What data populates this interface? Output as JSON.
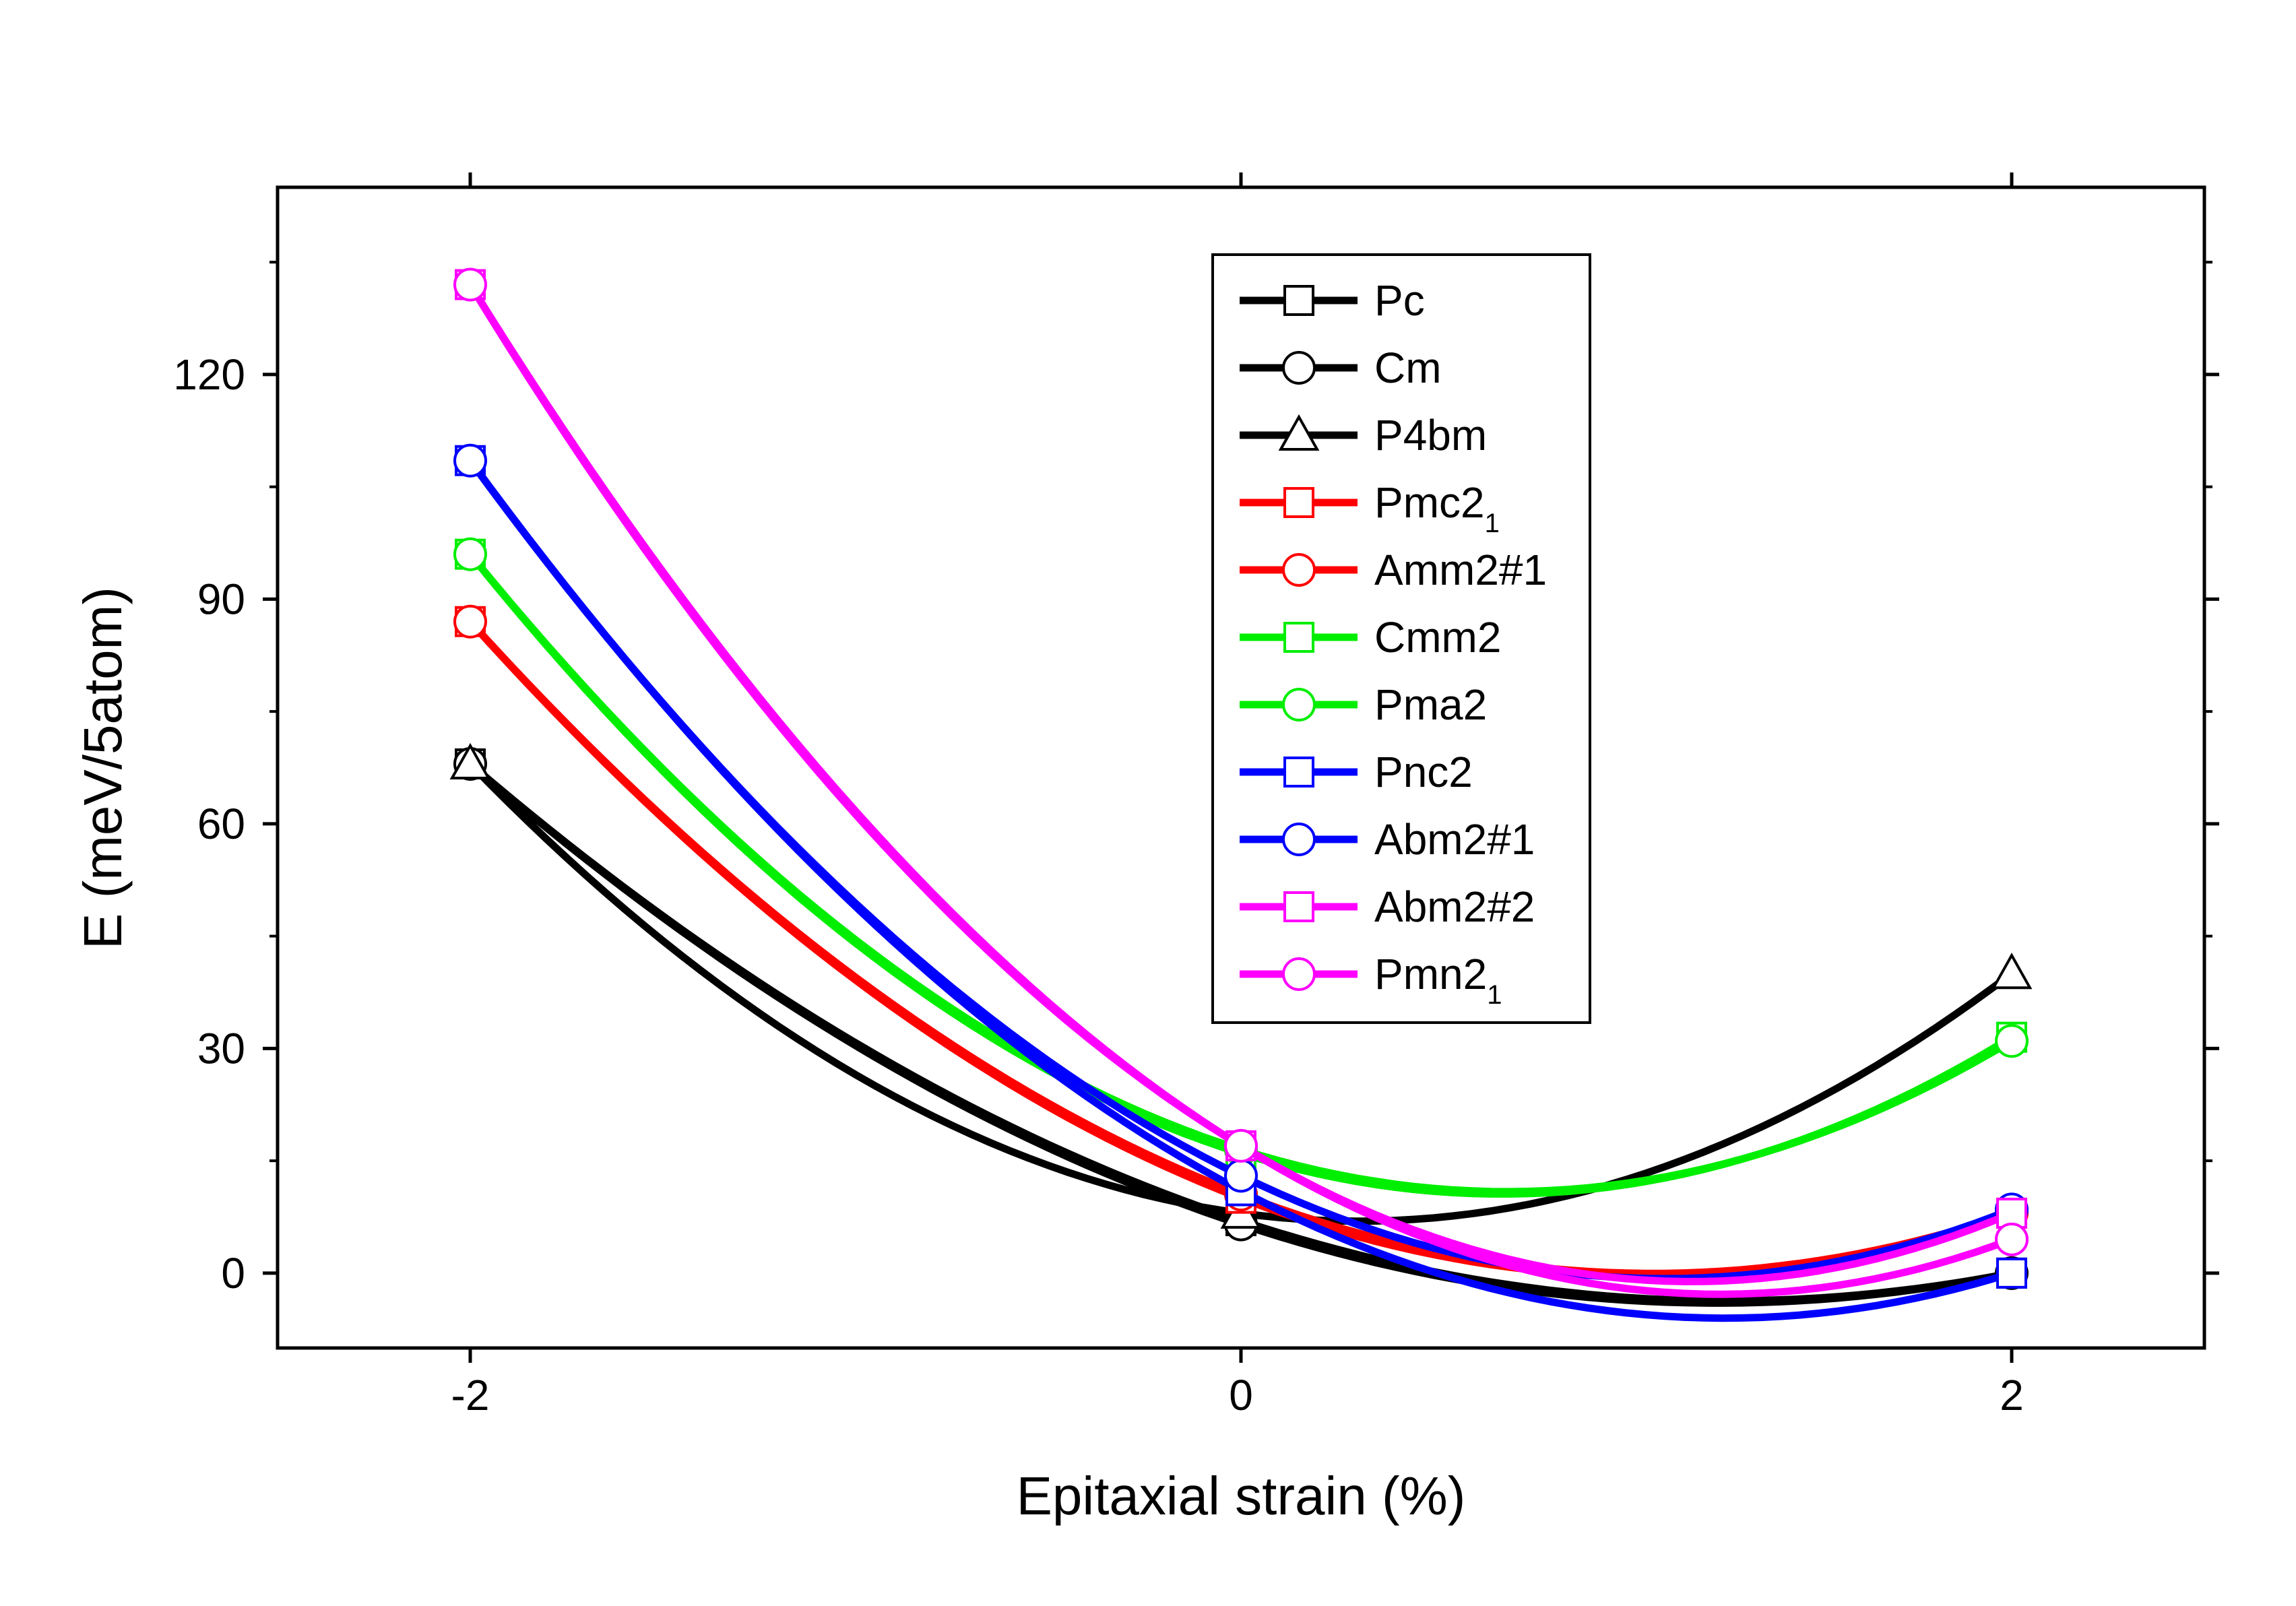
{
  "chart_data": {
    "type": "line",
    "title": "",
    "xlabel": "Epitaxial strain (%)",
    "ylabel": "E (meV/5atom)",
    "xlim": [
      -2.5,
      2.5
    ],
    "ylim": [
      -10,
      145
    ],
    "xticks": [
      -2,
      0,
      2
    ],
    "xtick_labels": [
      "-2",
      "0",
      "2"
    ],
    "yticks": [
      0,
      30,
      60,
      90,
      120
    ],
    "ytick_labels": [
      "0",
      "30",
      "60",
      "90",
      "120"
    ],
    "legend_position": "top-right",
    "x": [
      -2,
      0,
      2
    ],
    "series": [
      {
        "name": "Pc",
        "label": "Pc",
        "subscript": "",
        "color": "#000000",
        "marker": "square",
        "values": [
          68,
          7,
          0
        ]
      },
      {
        "name": "Cm",
        "label": "Cm",
        "subscript": "",
        "color": "#000000",
        "marker": "circle",
        "values": [
          68,
          6.5,
          0
        ]
      },
      {
        "name": "P4bm",
        "label": "P4bm",
        "subscript": "",
        "color": "#000000",
        "marker": "triangle",
        "values": [
          68,
          8,
          40
        ]
      },
      {
        "name": "Pmc2_1",
        "label": "Pmc2",
        "subscript": "1",
        "color": "#ff0000",
        "marker": "square",
        "values": [
          87,
          10,
          8
        ]
      },
      {
        "name": "Amm2#1",
        "label": "Amm2#1",
        "subscript": "",
        "color": "#ff0000",
        "marker": "circle",
        "values": [
          87,
          10.5,
          8
        ]
      },
      {
        "name": "Cmm2",
        "label": "Cmm2",
        "subscript": "",
        "color": "#00ee00",
        "marker": "square",
        "values": [
          96,
          16,
          31.5
        ]
      },
      {
        "name": "Pma2",
        "label": "Pma2",
        "subscript": "",
        "color": "#00ee00",
        "marker": "circle",
        "values": [
          96,
          16.5,
          31
        ]
      },
      {
        "name": "Pnc2",
        "label": "Pnc2",
        "subscript": "",
        "color": "#0000ff",
        "marker": "square",
        "values": [
          108.5,
          11,
          0
        ]
      },
      {
        "name": "Abm2#1",
        "label": "Abm2#1",
        "subscript": "",
        "color": "#0000ff",
        "marker": "circle",
        "values": [
          108.5,
          13,
          8.5
        ]
      },
      {
        "name": "Abm2#2",
        "label": "Abm2#2",
        "subscript": "",
        "color": "#ff00ff",
        "marker": "square",
        "values": [
          132,
          17,
          8
        ]
      },
      {
        "name": "Pmn2_1",
        "label": "Pmn2",
        "subscript": "1",
        "color": "#ff00ff",
        "marker": "circle",
        "values": [
          132,
          17,
          4.5
        ]
      }
    ]
  }
}
